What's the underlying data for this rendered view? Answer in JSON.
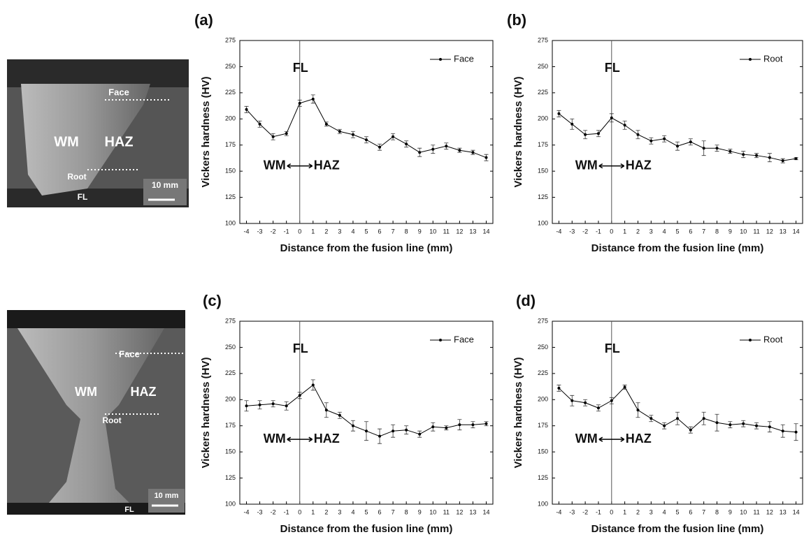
{
  "micrographs": [
    [
      "Face",
      "Root",
      "WM",
      "HAZ",
      "FL",
      "10 mm"
    ],
    [
      "Face",
      "Root",
      "WM",
      "HAZ",
      "FL",
      "10 mm"
    ]
  ],
  "chart_data": [
    {
      "type": "line",
      "panel": "(a)",
      "xlabel": "Distance from the fusion line (mm)",
      "ylabel": "Vickers hardness (HV)",
      "x": [
        -4,
        -3,
        -2,
        -1,
        0,
        1,
        2,
        3,
        4,
        5,
        6,
        7,
        8,
        9,
        10,
        11,
        12,
        13,
        14
      ],
      "series": [
        {
          "name": "Face",
          "color": "#000000",
          "values": [
            209,
            195,
            183,
            186,
            215,
            219,
            195,
            188,
            185,
            180,
            173,
            183,
            176,
            168,
            171,
            174,
            170,
            168,
            163
          ],
          "errors": [
            3,
            3,
            3,
            2,
            3,
            4,
            2,
            2,
            3,
            3,
            3,
            3,
            3,
            4,
            4,
            3,
            2,
            2,
            3
          ]
        }
      ],
      "xlim": [
        -4.5,
        14.5
      ],
      "ylim": [
        100,
        275
      ],
      "xticks": [
        -4,
        -3,
        -2,
        -1,
        0,
        1,
        2,
        3,
        4,
        5,
        6,
        7,
        8,
        9,
        10,
        11,
        12,
        13,
        14
      ],
      "yticks": [
        100,
        125,
        150,
        175,
        200,
        225,
        250,
        275
      ],
      "fusion_line_x": 0,
      "annotations": {
        "fl": "FL",
        "wm": "WM",
        "haz": "HAZ"
      }
    },
    {
      "type": "line",
      "panel": "(b)",
      "xlabel": "Distance from the fusion line (mm)",
      "ylabel": "Vickers hardness (HV)",
      "x": [
        -4,
        -3,
        -2,
        -1,
        0,
        1,
        2,
        3,
        4,
        5,
        6,
        7,
        8,
        9,
        10,
        11,
        12,
        13,
        14
      ],
      "series": [
        {
          "name": "Root",
          "color": "#000000",
          "values": [
            205,
            195,
            185,
            186,
            201,
            194,
            185,
            179,
            181,
            174,
            178,
            172,
            172,
            169,
            166,
            165,
            163,
            160,
            162
          ],
          "errors": [
            3,
            5,
            4,
            3,
            4,
            4,
            4,
            3,
            3,
            4,
            3,
            7,
            3,
            2,
            3,
            2,
            4,
            2,
            1
          ]
        }
      ],
      "xlim": [
        -4.5,
        14.5
      ],
      "ylim": [
        100,
        275
      ],
      "xticks": [
        -4,
        -3,
        -2,
        -1,
        0,
        1,
        2,
        3,
        4,
        5,
        6,
        7,
        8,
        9,
        10,
        11,
        12,
        13,
        14
      ],
      "yticks": [
        100,
        125,
        150,
        175,
        200,
        225,
        250,
        275
      ],
      "fusion_line_x": 0,
      "annotations": {
        "fl": "FL",
        "wm": "WM",
        "haz": "HAZ"
      }
    },
    {
      "type": "line",
      "panel": "(c)",
      "xlabel": "Distance from the fusion line (mm)",
      "ylabel": "Vickers hardness (HV)",
      "x": [
        -4,
        -3,
        -2,
        -1,
        0,
        1,
        2,
        3,
        4,
        5,
        6,
        7,
        8,
        9,
        10,
        11,
        12,
        13,
        14
      ],
      "series": [
        {
          "name": "Face",
          "color": "#000000",
          "values": [
            194,
            195,
            196,
            194,
            204,
            214,
            190,
            185,
            175,
            170,
            165,
            170,
            171,
            167,
            174,
            173,
            176,
            176,
            177
          ],
          "errors": [
            5,
            4,
            3,
            4,
            3,
            5,
            7,
            3,
            5,
            9,
            7,
            6,
            4,
            3,
            4,
            2,
            5,
            3,
            2
          ]
        }
      ],
      "xlim": [
        -4.5,
        14.5
      ],
      "ylim": [
        100,
        275
      ],
      "xticks": [
        -4,
        -3,
        -2,
        -1,
        0,
        1,
        2,
        3,
        4,
        5,
        6,
        7,
        8,
        9,
        10,
        11,
        12,
        13,
        14
      ],
      "yticks": [
        100,
        125,
        150,
        175,
        200,
        225,
        250,
        275
      ],
      "fusion_line_x": 0,
      "annotations": {
        "fl": "FL",
        "wm": "WM",
        "haz": "HAZ"
      }
    },
    {
      "type": "line",
      "panel": "(d)",
      "xlabel": "Distance from the fusion line (mm)",
      "ylabel": "Vickers hardness (HV)",
      "x": [
        -4,
        -3,
        -2,
        -1,
        0,
        1,
        2,
        3,
        4,
        5,
        6,
        7,
        8,
        9,
        10,
        11,
        12,
        13,
        14
      ],
      "series": [
        {
          "name": "Root",
          "color": "#000000",
          "values": [
            211,
            199,
            197,
            192,
            199,
            212,
            190,
            182,
            175,
            182,
            171,
            182,
            178,
            176,
            177,
            175,
            174,
            170,
            169
          ],
          "errors": [
            3,
            5,
            3,
            3,
            3,
            2,
            7,
            3,
            3,
            6,
            3,
            6,
            8,
            3,
            3,
            3,
            5,
            6,
            8
          ]
        }
      ],
      "xlim": [
        -4.5,
        14.5
      ],
      "ylim": [
        100,
        275
      ],
      "xticks": [
        -4,
        -3,
        -2,
        -1,
        0,
        1,
        2,
        3,
        4,
        5,
        6,
        7,
        8,
        9,
        10,
        11,
        12,
        13,
        14
      ],
      "yticks": [
        100,
        125,
        150,
        175,
        200,
        225,
        250,
        275
      ],
      "fusion_line_x": 0,
      "annotations": {
        "fl": "FL",
        "wm": "WM",
        "haz": "HAZ"
      }
    }
  ]
}
